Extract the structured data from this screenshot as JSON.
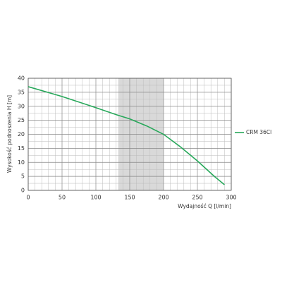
{
  "chart_data": {
    "type": "line",
    "x_label": "Wydajność Q [l/min]",
    "y_label": "Wysokość podnoszenia H [m]",
    "x": [
      0,
      50,
      100,
      130,
      150,
      175,
      200,
      225,
      250,
      275,
      290
    ],
    "series": [
      {
        "name": "CRM 36Cl",
        "color": "#27a85a",
        "values": [
          37,
          33.5,
          29.5,
          27,
          25.5,
          23,
          20,
          15.5,
          10.5,
          5,
          2
        ]
      }
    ],
    "xlim": [
      0,
      300
    ],
    "xticks": [
      0,
      50,
      100,
      150,
      200,
      250,
      300
    ],
    "ylim": [
      0,
      40
    ],
    "yticks": [
      0,
      5,
      10,
      15,
      20,
      25,
      30,
      35,
      40
    ],
    "minor_xticks": [
      10,
      20,
      30,
      40,
      60,
      70,
      80,
      90,
      110,
      120,
      130,
      140,
      160,
      170,
      180,
      190,
      210,
      220,
      230,
      240,
      260,
      270,
      280,
      290
    ],
    "minor_yticks": [
      2.5,
      7.5,
      12.5,
      17.5,
      22.5,
      27.5,
      32.5,
      37.5
    ],
    "shaded_range": [
      133,
      200
    ],
    "grid": true,
    "legend": "right"
  }
}
